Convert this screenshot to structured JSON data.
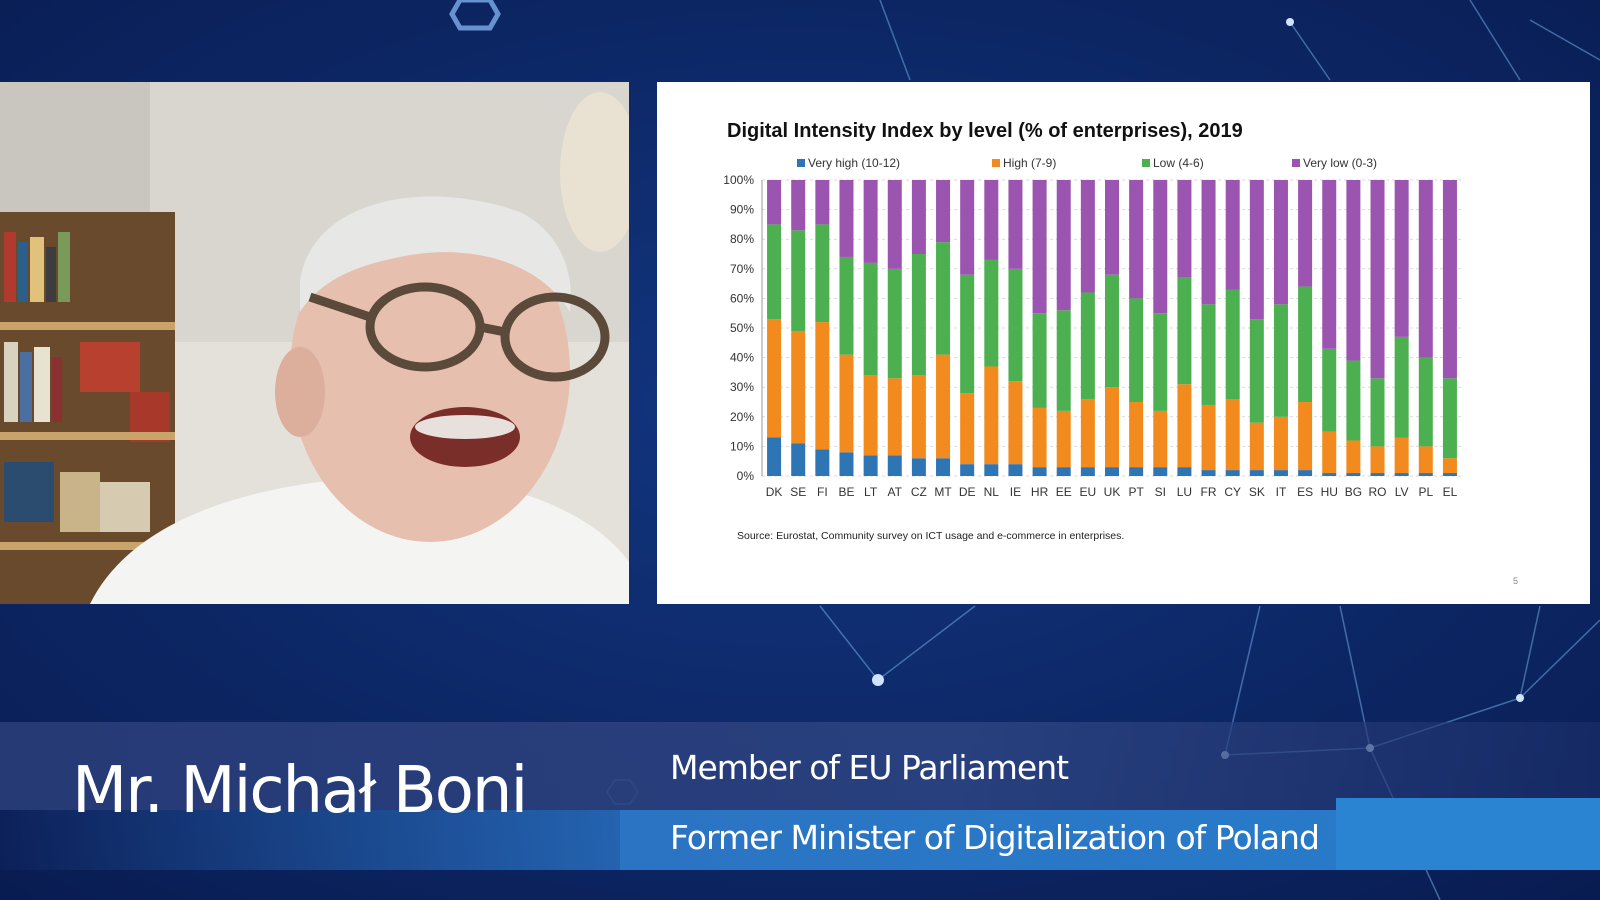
{
  "speaker": {
    "name": "Mr. Michał Boni",
    "role_line1": "Member of EU Parliament",
    "role_line2": "Former Minister of Digitalization of Poland"
  },
  "slide": {
    "title": "Digital Intensity Index by level (% of enterprises), 2019",
    "source": "Source: Eurostat, Community survey on ICT usage and e-commerce in enterprises.",
    "page_number": "5"
  },
  "chart_data": {
    "type": "bar",
    "stacked": true,
    "title": "Digital Intensity Index by level (% of enterprises), 2019",
    "categories": [
      "DK",
      "SE",
      "FI",
      "BE",
      "LT",
      "AT",
      "CZ",
      "MT",
      "DE",
      "NL",
      "IE",
      "HR",
      "EE",
      "EU",
      "UK",
      "PT",
      "SI",
      "LU",
      "FR",
      "CY",
      "SK",
      "IT",
      "ES",
      "HU",
      "BG",
      "RO",
      "LV",
      "PL",
      "EL"
    ],
    "y_ticks": [
      "0%",
      "10%",
      "20%",
      "30%",
      "40%",
      "50%",
      "60%",
      "70%",
      "80%",
      "90%",
      "100%"
    ],
    "ylim": [
      0,
      100
    ],
    "legend_position": "top",
    "series": [
      {
        "name": "Very high (10-12)",
        "color": "#2e75b6",
        "values": [
          13,
          11,
          9,
          8,
          7,
          7,
          6,
          6,
          4,
          4,
          4,
          3,
          3,
          3,
          3,
          3,
          3,
          3,
          2,
          2,
          2,
          2,
          2,
          1,
          1,
          1,
          1,
          1,
          1
        ]
      },
      {
        "name": "High (7-9)",
        "color": "#f28a1d",
        "values": [
          40,
          38,
          43,
          33,
          27,
          26,
          28,
          35,
          24,
          33,
          28,
          20,
          19,
          23,
          27,
          22,
          19,
          28,
          22,
          24,
          16,
          18,
          23,
          14,
          11,
          9,
          12,
          9,
          5
        ]
      },
      {
        "name": "Low (4-6)",
        "color": "#4caf50",
        "values": [
          32,
          34,
          33,
          33,
          38,
          37,
          41,
          38,
          40,
          36,
          38,
          32,
          34,
          36,
          38,
          35,
          33,
          36,
          34,
          37,
          35,
          38,
          39,
          28,
          27,
          23,
          34,
          30,
          27
        ]
      },
      {
        "name": "Very low (0-3)",
        "color": "#9b55b0",
        "values": [
          15,
          17,
          15,
          26,
          28,
          30,
          25,
          21,
          32,
          27,
          30,
          45,
          44,
          38,
          32,
          40,
          45,
          33,
          42,
          37,
          47,
          42,
          36,
          57,
          61,
          67,
          53,
          60,
          67
        ]
      }
    ]
  }
}
